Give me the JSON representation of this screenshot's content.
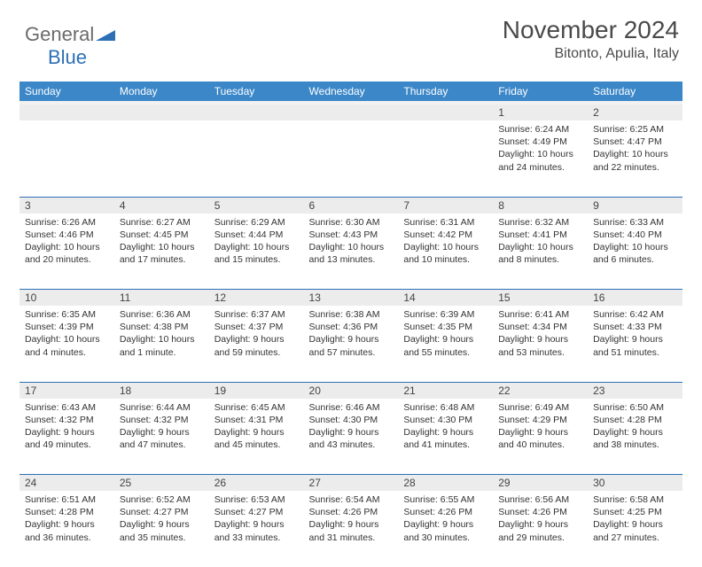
{
  "logo": {
    "word1": "General",
    "word2": "Blue"
  },
  "title": "November 2024",
  "location": "Bitonto, Apulia, Italy",
  "colors": {
    "header_bg": "#3b87c8",
    "header_text": "#ffffff",
    "daynum_bg": "#ececec",
    "row_border": "#2d6fb5",
    "text": "#333333",
    "logo_gray": "#6b6b6b",
    "logo_blue": "#2d6fb5",
    "page_bg": "#ffffff"
  },
  "weekdays": [
    "Sunday",
    "Monday",
    "Tuesday",
    "Wednesday",
    "Thursday",
    "Friday",
    "Saturday"
  ],
  "weeks": [
    [
      null,
      null,
      null,
      null,
      null,
      {
        "n": "1",
        "sunrise": "6:24 AM",
        "sunset": "4:49 PM",
        "daylight": "10 hours and 24 minutes."
      },
      {
        "n": "2",
        "sunrise": "6:25 AM",
        "sunset": "4:47 PM",
        "daylight": "10 hours and 22 minutes."
      }
    ],
    [
      {
        "n": "3",
        "sunrise": "6:26 AM",
        "sunset": "4:46 PM",
        "daylight": "10 hours and 20 minutes."
      },
      {
        "n": "4",
        "sunrise": "6:27 AM",
        "sunset": "4:45 PM",
        "daylight": "10 hours and 17 minutes."
      },
      {
        "n": "5",
        "sunrise": "6:29 AM",
        "sunset": "4:44 PM",
        "daylight": "10 hours and 15 minutes."
      },
      {
        "n": "6",
        "sunrise": "6:30 AM",
        "sunset": "4:43 PM",
        "daylight": "10 hours and 13 minutes."
      },
      {
        "n": "7",
        "sunrise": "6:31 AM",
        "sunset": "4:42 PM",
        "daylight": "10 hours and 10 minutes."
      },
      {
        "n": "8",
        "sunrise": "6:32 AM",
        "sunset": "4:41 PM",
        "daylight": "10 hours and 8 minutes."
      },
      {
        "n": "9",
        "sunrise": "6:33 AM",
        "sunset": "4:40 PM",
        "daylight": "10 hours and 6 minutes."
      }
    ],
    [
      {
        "n": "10",
        "sunrise": "6:35 AM",
        "sunset": "4:39 PM",
        "daylight": "10 hours and 4 minutes."
      },
      {
        "n": "11",
        "sunrise": "6:36 AM",
        "sunset": "4:38 PM",
        "daylight": "10 hours and 1 minute."
      },
      {
        "n": "12",
        "sunrise": "6:37 AM",
        "sunset": "4:37 PM",
        "daylight": "9 hours and 59 minutes."
      },
      {
        "n": "13",
        "sunrise": "6:38 AM",
        "sunset": "4:36 PM",
        "daylight": "9 hours and 57 minutes."
      },
      {
        "n": "14",
        "sunrise": "6:39 AM",
        "sunset": "4:35 PM",
        "daylight": "9 hours and 55 minutes."
      },
      {
        "n": "15",
        "sunrise": "6:41 AM",
        "sunset": "4:34 PM",
        "daylight": "9 hours and 53 minutes."
      },
      {
        "n": "16",
        "sunrise": "6:42 AM",
        "sunset": "4:33 PM",
        "daylight": "9 hours and 51 minutes."
      }
    ],
    [
      {
        "n": "17",
        "sunrise": "6:43 AM",
        "sunset": "4:32 PM",
        "daylight": "9 hours and 49 minutes."
      },
      {
        "n": "18",
        "sunrise": "6:44 AM",
        "sunset": "4:32 PM",
        "daylight": "9 hours and 47 minutes."
      },
      {
        "n": "19",
        "sunrise": "6:45 AM",
        "sunset": "4:31 PM",
        "daylight": "9 hours and 45 minutes."
      },
      {
        "n": "20",
        "sunrise": "6:46 AM",
        "sunset": "4:30 PM",
        "daylight": "9 hours and 43 minutes."
      },
      {
        "n": "21",
        "sunrise": "6:48 AM",
        "sunset": "4:30 PM",
        "daylight": "9 hours and 41 minutes."
      },
      {
        "n": "22",
        "sunrise": "6:49 AM",
        "sunset": "4:29 PM",
        "daylight": "9 hours and 40 minutes."
      },
      {
        "n": "23",
        "sunrise": "6:50 AM",
        "sunset": "4:28 PM",
        "daylight": "9 hours and 38 minutes."
      }
    ],
    [
      {
        "n": "24",
        "sunrise": "6:51 AM",
        "sunset": "4:28 PM",
        "daylight": "9 hours and 36 minutes."
      },
      {
        "n": "25",
        "sunrise": "6:52 AM",
        "sunset": "4:27 PM",
        "daylight": "9 hours and 35 minutes."
      },
      {
        "n": "26",
        "sunrise": "6:53 AM",
        "sunset": "4:27 PM",
        "daylight": "9 hours and 33 minutes."
      },
      {
        "n": "27",
        "sunrise": "6:54 AM",
        "sunset": "4:26 PM",
        "daylight": "9 hours and 31 minutes."
      },
      {
        "n": "28",
        "sunrise": "6:55 AM",
        "sunset": "4:26 PM",
        "daylight": "9 hours and 30 minutes."
      },
      {
        "n": "29",
        "sunrise": "6:56 AM",
        "sunset": "4:26 PM",
        "daylight": "9 hours and 29 minutes."
      },
      {
        "n": "30",
        "sunrise": "6:58 AM",
        "sunset": "4:25 PM",
        "daylight": "9 hours and 27 minutes."
      }
    ]
  ],
  "labels": {
    "sunrise": "Sunrise:",
    "sunset": "Sunset:",
    "daylight": "Daylight:"
  }
}
